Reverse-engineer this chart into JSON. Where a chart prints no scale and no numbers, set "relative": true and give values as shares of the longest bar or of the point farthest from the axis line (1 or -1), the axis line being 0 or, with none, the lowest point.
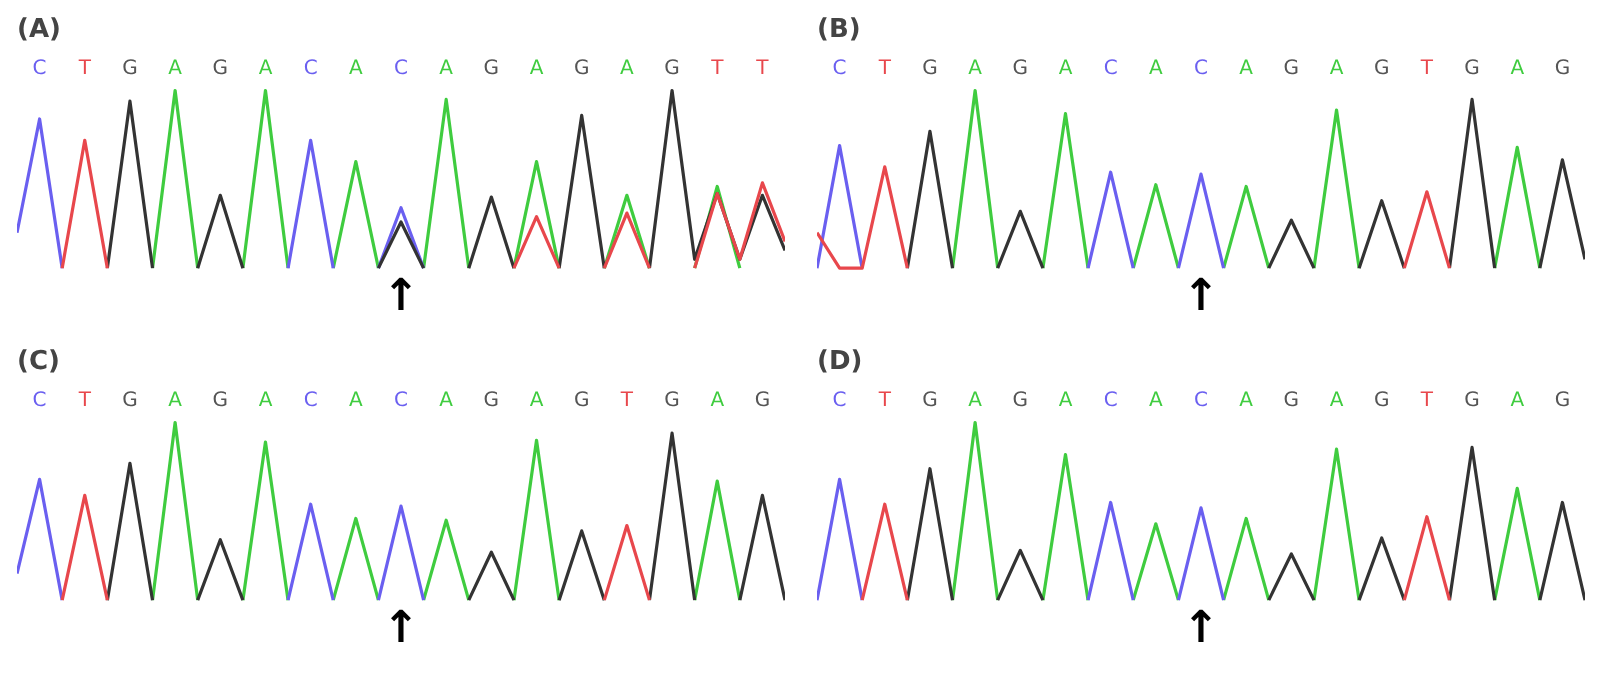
{
  "chart_data": [
    {
      "type": "line",
      "title": "(A)",
      "relative": true,
      "tick_labels": "x",
      "categories": [
        null,
        "C",
        null,
        "T",
        null,
        "G",
        null,
        "A",
        null,
        "G",
        null,
        "A",
        null,
        "C",
        null,
        "A",
        null,
        "C",
        null,
        "A",
        null,
        "G",
        null,
        "A",
        null,
        "G",
        null,
        "A",
        null,
        "G",
        null,
        "T",
        null,
        "T",
        null
      ],
      "colors": [
        null,
        "#6a5ff0",
        null,
        "#e8474c",
        null,
        "#555555",
        null,
        "#3fcc3f",
        null,
        "#555555",
        null,
        "#3fcc3f",
        null,
        "#6a5ff0",
        null,
        "#3fcc3f",
        null,
        "#6a5ff0",
        null,
        "#3fcc3f",
        null,
        "#555555",
        null,
        "#3fcc3f",
        null,
        "#555555",
        null,
        "#3fcc3f",
        null,
        "#555555",
        null,
        "#e8474c",
        null,
        "#e8474c",
        null
      ],
      "annotations": [
        "↑"
      ],
      "series": [
        {
          "color": "#3fcc3f",
          "values": [
            null,
            null,
            null,
            null,
            null,
            null,
            0,
            1.0,
            0,
            null,
            0,
            1.0,
            0,
            null,
            0,
            0.6,
            0,
            null,
            0,
            0.95,
            0,
            null,
            0,
            0.6,
            0,
            null,
            0,
            0.41,
            0,
            null,
            0,
            0.46,
            0,
            null,
            null
          ]
        },
        {
          "color": "#6a5ff0",
          "values": [
            0.2,
            0.84,
            0,
            null,
            null,
            null,
            null,
            null,
            null,
            null,
            null,
            null,
            0,
            0.72,
            0,
            null,
            0,
            0.34,
            0,
            null,
            null,
            null,
            null,
            null,
            null,
            null,
            null,
            null,
            null,
            null,
            null,
            null,
            null,
            null,
            null
          ]
        },
        {
          "color": "#333333",
          "values": [
            null,
            null,
            null,
            null,
            0,
            0.94,
            0,
            null,
            0,
            0.41,
            0,
            null,
            null,
            null,
            null,
            null,
            0,
            0.26,
            0,
            null,
            0,
            0.4,
            0,
            null,
            0,
            0.86,
            0,
            null,
            0,
            1.0,
            0.05,
            0.42,
            0.05,
            0.41,
            0.1
          ]
        },
        {
          "color": "#e8474c",
          "values": [
            null,
            null,
            0,
            0.72,
            0,
            null,
            null,
            null,
            null,
            null,
            null,
            null,
            null,
            null,
            null,
            null,
            null,
            null,
            null,
            null,
            null,
            null,
            0,
            0.29,
            0,
            null,
            0,
            0.31,
            0,
            null,
            0,
            0.42,
            0.05,
            0.48,
            0.15
          ]
        }
      ]
    },
    {
      "type": "line",
      "title": "(B)",
      "relative": true,
      "tick_labels": "x",
      "categories": [
        null,
        "C",
        null,
        "T",
        null,
        "G",
        null,
        "A",
        null,
        "G",
        null,
        "A",
        null,
        "C",
        null,
        "A",
        null,
        "C",
        null,
        "A",
        null,
        "G",
        null,
        "A",
        null,
        "G",
        null,
        "T",
        null,
        "G",
        null,
        "A",
        null,
        "G",
        null
      ],
      "colors": [
        null,
        "#6a5ff0",
        null,
        "#e8474c",
        null,
        "#555555",
        null,
        "#3fcc3f",
        null,
        "#555555",
        null,
        "#3fcc3f",
        null,
        "#6a5ff0",
        null,
        "#3fcc3f",
        null,
        "#6a5ff0",
        null,
        "#3fcc3f",
        null,
        "#555555",
        null,
        "#3fcc3f",
        null,
        "#555555",
        null,
        "#e8474c",
        null,
        "#555555",
        null,
        "#3fcc3f",
        null,
        "#555555",
        null
      ],
      "annotations": [
        "↑"
      ],
      "series": [
        {
          "color": "#3fcc3f",
          "values": [
            null,
            null,
            null,
            null,
            null,
            null,
            0,
            1.0,
            0,
            null,
            0,
            0.87,
            0,
            null,
            0,
            0.47,
            0,
            null,
            0,
            0.46,
            0,
            null,
            0,
            0.89,
            0,
            null,
            null,
            null,
            null,
            null,
            0,
            0.68,
            0,
            null,
            null
          ]
        },
        {
          "color": "#6a5ff0",
          "values": [
            0,
            0.69,
            0,
            null,
            null,
            null,
            null,
            null,
            null,
            null,
            null,
            null,
            0,
            0.54,
            0,
            null,
            0,
            0.53,
            0,
            null,
            null,
            null,
            null,
            null,
            null,
            null,
            null,
            null,
            null,
            null,
            null,
            null,
            null,
            null,
            null
          ]
        },
        {
          "color": "#333333",
          "values": [
            null,
            null,
            null,
            null,
            0,
            0.77,
            0,
            null,
            0,
            0.32,
            0,
            null,
            null,
            null,
            null,
            null,
            null,
            null,
            null,
            null,
            0,
            0.27,
            0,
            null,
            0,
            0.38,
            0,
            null,
            0,
            0.95,
            0,
            null,
            0,
            0.61,
            0.05
          ]
        },
        {
          "color": "#e8474c",
          "values": [
            0.2,
            0,
            0,
            0.57,
            0,
            null,
            null,
            null,
            null,
            null,
            null,
            null,
            null,
            null,
            null,
            null,
            null,
            null,
            null,
            null,
            null,
            null,
            null,
            null,
            null,
            null,
            0,
            0.43,
            0,
            null,
            null,
            null,
            null,
            null,
            null
          ]
        }
      ]
    },
    {
      "type": "line",
      "title": "(C)",
      "relative": true,
      "tick_labels": "x",
      "categories": [
        null,
        "C",
        null,
        "T",
        null,
        "G",
        null,
        "A",
        null,
        "G",
        null,
        "A",
        null,
        "C",
        null,
        "A",
        null,
        "C",
        null,
        "A",
        null,
        "G",
        null,
        "A",
        null,
        "G",
        null,
        "T",
        null,
        "G",
        null,
        "A",
        null,
        "G",
        null
      ],
      "colors": [
        null,
        "#6a5ff0",
        null,
        "#e8474c",
        null,
        "#555555",
        null,
        "#3fcc3f",
        null,
        "#555555",
        null,
        "#3fcc3f",
        null,
        "#6a5ff0",
        null,
        "#3fcc3f",
        null,
        "#6a5ff0",
        null,
        "#3fcc3f",
        null,
        "#555555",
        null,
        "#3fcc3f",
        null,
        "#555555",
        null,
        "#e8474c",
        null,
        "#555555",
        null,
        "#3fcc3f",
        null,
        "#555555",
        null
      ],
      "annotations": [
        "↑"
      ],
      "series": [
        {
          "color": "#3fcc3f",
          "values": [
            null,
            null,
            null,
            null,
            null,
            null,
            0,
            1.0,
            0,
            null,
            0,
            0.89,
            0,
            null,
            0,
            0.46,
            0,
            null,
            0,
            0.45,
            0,
            null,
            0,
            0.9,
            0,
            null,
            null,
            null,
            null,
            null,
            0,
            0.67,
            0,
            null,
            null
          ]
        },
        {
          "color": "#6a5ff0",
          "values": [
            0.15,
            0.68,
            0,
            null,
            null,
            null,
            null,
            null,
            null,
            null,
            null,
            null,
            0,
            0.54,
            0,
            null,
            0,
            0.53,
            0,
            null,
            null,
            null,
            null,
            null,
            null,
            null,
            null,
            null,
            null,
            null,
            null,
            null,
            null,
            null,
            null
          ]
        },
        {
          "color": "#333333",
          "values": [
            null,
            null,
            null,
            null,
            0,
            0.77,
            0,
            null,
            0,
            0.34,
            0,
            null,
            null,
            null,
            null,
            null,
            null,
            null,
            null,
            null,
            0,
            0.27,
            0,
            null,
            0,
            0.39,
            0,
            null,
            0,
            0.94,
            0,
            null,
            0,
            0.59,
            0
          ]
        },
        {
          "color": "#e8474c",
          "values": [
            null,
            null,
            0,
            0.59,
            0,
            null,
            null,
            null,
            null,
            null,
            null,
            null,
            null,
            null,
            null,
            null,
            null,
            null,
            null,
            null,
            null,
            null,
            null,
            null,
            null,
            null,
            0,
            0.42,
            0,
            null,
            null,
            null,
            null,
            null,
            null
          ]
        }
      ]
    },
    {
      "type": "line",
      "title": "(D)",
      "relative": true,
      "tick_labels": "x",
      "categories": [
        null,
        "C",
        null,
        "T",
        null,
        "G",
        null,
        "A",
        null,
        "G",
        null,
        "A",
        null,
        "C",
        null,
        "A",
        null,
        "C",
        null,
        "A",
        null,
        "G",
        null,
        "A",
        null,
        "G",
        null,
        "T",
        null,
        "G",
        null,
        "A",
        null,
        "G",
        null
      ],
      "colors": [
        null,
        "#6a5ff0",
        null,
        "#e8474c",
        null,
        "#555555",
        null,
        "#3fcc3f",
        null,
        "#555555",
        null,
        "#3fcc3f",
        null,
        "#6a5ff0",
        null,
        "#3fcc3f",
        null,
        "#6a5ff0",
        null,
        "#3fcc3f",
        null,
        "#555555",
        null,
        "#3fcc3f",
        null,
        "#555555",
        null,
        "#e8474c",
        null,
        "#555555",
        null,
        "#3fcc3f",
        null,
        "#555555",
        null
      ],
      "annotations": [
        "↑"
      ],
      "series": [
        {
          "color": "#3fcc3f",
          "values": [
            null,
            null,
            null,
            null,
            null,
            null,
            0,
            1.0,
            0,
            null,
            0,
            0.82,
            0,
            null,
            0,
            0.43,
            0,
            null,
            0,
            0.46,
            0,
            null,
            0,
            0.85,
            0,
            null,
            null,
            null,
            null,
            null,
            0,
            0.63,
            0,
            null,
            null
          ]
        },
        {
          "color": "#6a5ff0",
          "values": [
            0,
            0.68,
            0,
            null,
            null,
            null,
            null,
            null,
            null,
            null,
            null,
            null,
            0,
            0.55,
            0,
            null,
            0,
            0.52,
            0,
            null,
            null,
            null,
            null,
            null,
            null,
            null,
            null,
            null,
            null,
            null,
            null,
            null,
            null,
            null,
            null
          ]
        },
        {
          "color": "#333333",
          "values": [
            null,
            null,
            null,
            null,
            0,
            0.74,
            0,
            null,
            0,
            0.28,
            0,
            null,
            null,
            null,
            null,
            null,
            null,
            null,
            null,
            null,
            0,
            0.26,
            0,
            null,
            0,
            0.35,
            0,
            null,
            0,
            0.86,
            0,
            null,
            0,
            0.55,
            0
          ]
        },
        {
          "color": "#e8474c",
          "values": [
            null,
            null,
            0,
            0.54,
            0,
            null,
            null,
            null,
            null,
            null,
            null,
            null,
            null,
            null,
            null,
            null,
            null,
            null,
            null,
            null,
            null,
            null,
            null,
            null,
            null,
            null,
            0,
            0.47,
            0,
            null,
            null,
            null,
            null,
            null,
            null
          ]
        }
      ]
    }
  ]
}
